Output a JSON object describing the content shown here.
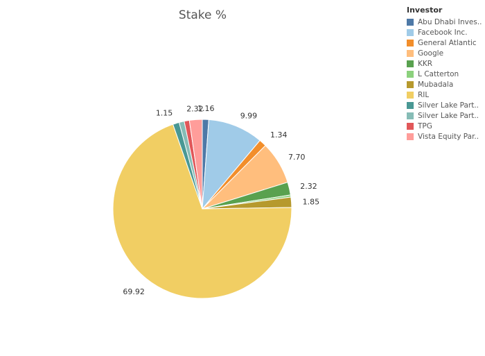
{
  "chart_data": {
    "type": "pie",
    "title": "Stake %",
    "legend_title": "Investor",
    "legend_placement": "top-right",
    "slices": [
      {
        "name": "Abu Dhabi Inves..",
        "value": 1.16,
        "label": "1.16",
        "color": "#4E79A7"
      },
      {
        "name": "Facebook Inc.",
        "value": 9.99,
        "label": "9.99",
        "color": "#A0CBE8"
      },
      {
        "name": "General Atlantic",
        "value": 1.34,
        "label": "1.34",
        "color": "#F28E2B"
      },
      {
        "name": "Google",
        "value": 7.7,
        "label": "7.70",
        "color": "#FFBE7D"
      },
      {
        "name": "KKR",
        "value": 2.32,
        "label": "2.32",
        "color": "#59A14F"
      },
      {
        "name": "L Catterton",
        "value": 0.39,
        "label": "",
        "color": "#8CD17D"
      },
      {
        "name": "Mubadala",
        "value": 1.85,
        "label": "1.85",
        "color": "#B6992D"
      },
      {
        "name": "RIL",
        "value": 69.92,
        "label": "69.92",
        "color": "#F1CE63"
      },
      {
        "name": "Silver Lake Part..",
        "value": 1.15,
        "label": "1.15",
        "color": "#499894"
      },
      {
        "name": "Silver Lake Part..",
        "value": 0.93,
        "label": "",
        "color": "#86BCB6"
      },
      {
        "name": "TPG",
        "value": 0.93,
        "label": "",
        "color": "#E15759"
      },
      {
        "name": "Vista Equity Par..",
        "value": 2.32,
        "label": "2.32",
        "color": "#FF9D9A"
      }
    ]
  }
}
